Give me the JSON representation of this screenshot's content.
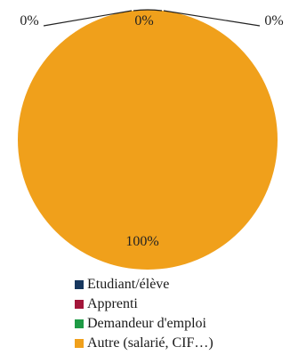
{
  "chart_data": {
    "type": "pie",
    "slices": [
      {
        "name": "Etudiant/élève",
        "value": 0,
        "label": "0%",
        "color": "#17375e"
      },
      {
        "name": "Apprenti",
        "value": 0,
        "label": "0%",
        "color": "#a3163a"
      },
      {
        "name": "Demandeur d'emploi",
        "value": 0,
        "label": "0%",
        "color": "#1e9a45"
      },
      {
        "name": "Autre (salarié, CIF…)",
        "value": 100,
        "label": "100%",
        "color": "#f0a01b"
      }
    ],
    "legend_position": "bottom"
  }
}
